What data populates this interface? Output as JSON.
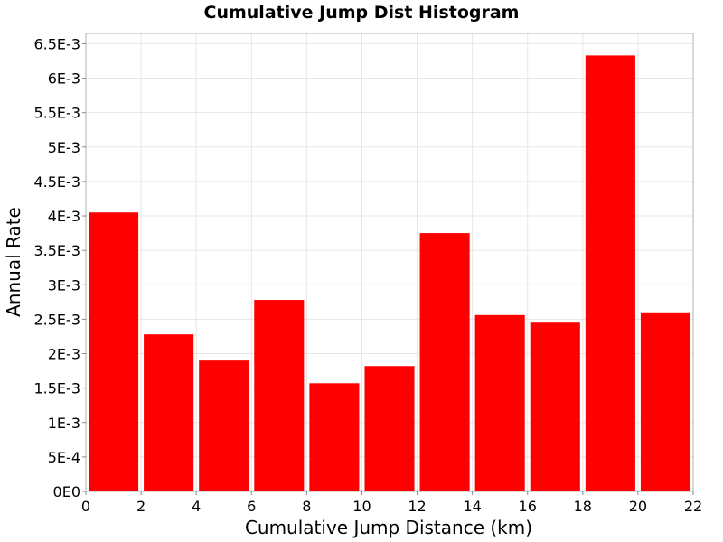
{
  "chart_data": {
    "type": "bar",
    "title": "Cumulative Jump Dist Histogram",
    "xlabel": "Cumulative Jump Distance (km)",
    "ylabel": "Annual Rate",
    "xlim": [
      0,
      22
    ],
    "ylim": [
      0,
      0.00665
    ],
    "grid": true,
    "bar_color": "#ff0000",
    "x_ticks": [
      0,
      2,
      4,
      6,
      8,
      10,
      12,
      14,
      16,
      18,
      20,
      22
    ],
    "x_tick_labels": [
      "0",
      "2",
      "4",
      "6",
      "8",
      "10",
      "12",
      "14",
      "16",
      "18",
      "20",
      "22"
    ],
    "y_ticks": [
      0,
      0.0005,
      0.001,
      0.0015,
      0.002,
      0.0025,
      0.003,
      0.0035,
      0.004,
      0.0045,
      0.005,
      0.0055,
      0.006,
      0.0065
    ],
    "y_tick_labels": [
      "0E0",
      "5E-4",
      "1E-3",
      "1.5E-3",
      "2E-3",
      "2.5E-3",
      "3E-3",
      "3.5E-3",
      "4E-3",
      "4.5E-3",
      "5E-3",
      "5.5E-3",
      "6E-3",
      "6.5E-3"
    ],
    "bins": [
      {
        "x0": 0,
        "x1": 2,
        "value": 0.00405
      },
      {
        "x0": 2,
        "x1": 4,
        "value": 0.00228
      },
      {
        "x0": 4,
        "x1": 6,
        "value": 0.0019
      },
      {
        "x0": 6,
        "x1": 8,
        "value": 0.00278
      },
      {
        "x0": 8,
        "x1": 10,
        "value": 0.00157
      },
      {
        "x0": 10,
        "x1": 12,
        "value": 0.00182
      },
      {
        "x0": 12,
        "x1": 14,
        "value": 0.00375
      },
      {
        "x0": 14,
        "x1": 16,
        "value": 0.00256
      },
      {
        "x0": 16,
        "x1": 18,
        "value": 0.00245
      },
      {
        "x0": 18,
        "x1": 20,
        "value": 0.00633
      },
      {
        "x0": 20,
        "x1": 22,
        "value": 0.0026
      }
    ]
  }
}
